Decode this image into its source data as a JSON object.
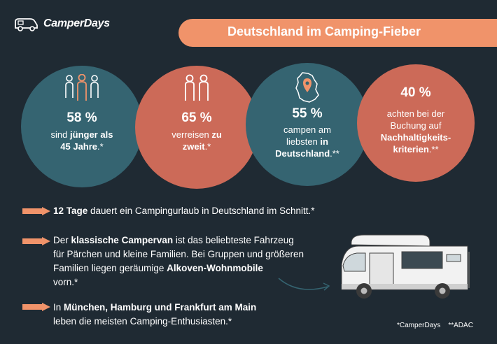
{
  "logo": {
    "text": "CamperDays",
    "icon": "camper-logo-icon"
  },
  "title": "Deutschland im Camping-Fieber",
  "stats": [
    {
      "percent": "58 %",
      "line1_pre": "sind ",
      "line1_bold": "jünger als",
      "line2_bold": "45 Jahre",
      "line2_post": ".*",
      "icon": "people-group-icon"
    },
    {
      "percent": "65 %",
      "line1_pre": "verreisen ",
      "line1_bold": "zu",
      "line2_bold": "zweit",
      "line2_post": ".*",
      "icon": "couple-icon"
    },
    {
      "percent": "55 %",
      "line1": "campen am",
      "line2_pre": "liebsten ",
      "line2_bold": "in",
      "line3_bold": "Deutschland",
      "line3_post": ".**",
      "icon": "germany-map-pin-icon"
    },
    {
      "percent": "40 %",
      "line1": "achten bei der",
      "line2": "Buchung auf",
      "line3_bold": "Nachhaltigkeits-",
      "line4_bold": "kriterien",
      "line4_post": ".**"
    }
  ],
  "facts": {
    "f1": {
      "bold": "12 Tage",
      "rest": " dauert ein Campingurlaub in Deutschland im Schnitt.*"
    },
    "f2": {
      "pre": "Der ",
      "bold1": "klassische Campervan",
      "mid": " ist das beliebteste Fahrzeug",
      "line2": "für Pärchen und kleine Familien. Bei Gruppen und größeren",
      "line3_pre": "Familien liegen geräumige ",
      "bold2": "Alkoven-Wohnmobile",
      "line4": "vorn.*"
    },
    "f3": {
      "pre": "In ",
      "bold": "München, Hamburg und Frankfurt am Main",
      "line2": "leben die meisten Camping-Enthusiasten.*"
    }
  },
  "footnote": "*CamperDays    **ADAC",
  "colors": {
    "background": "#1f2a33",
    "teal": "#356471",
    "coral": "#cc6a58",
    "orange": "#f0936a"
  }
}
